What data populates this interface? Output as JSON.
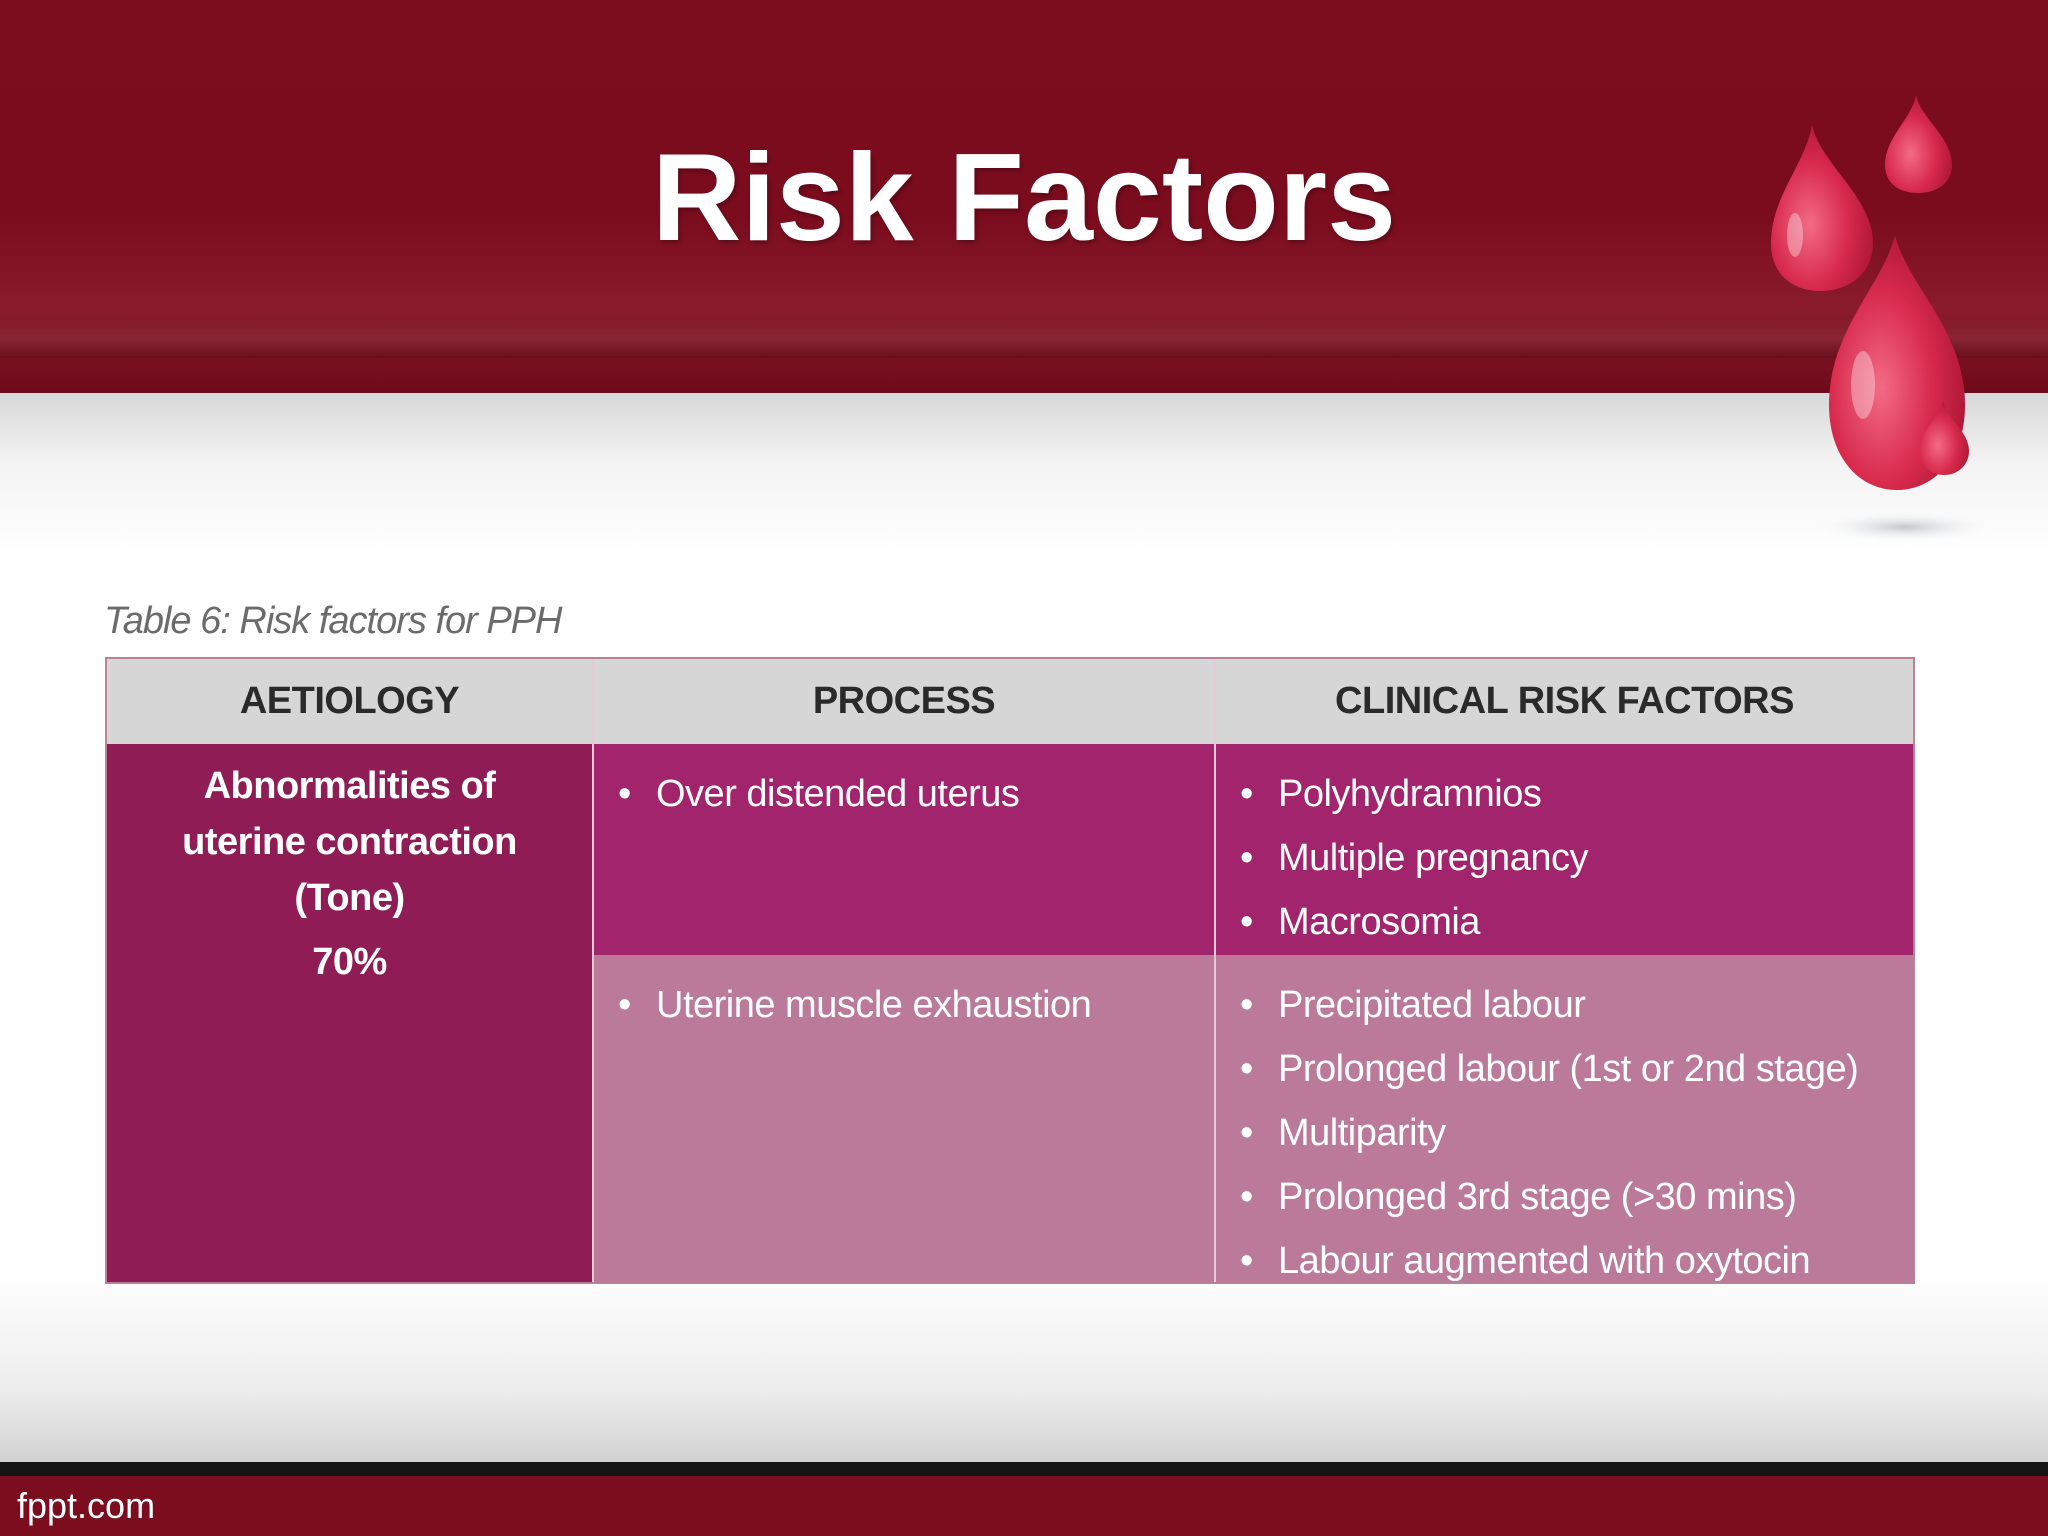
{
  "slide": {
    "title": "Risk Factors",
    "footer": "fppt.com",
    "colors": {
      "header": "#7c0d1f",
      "aetiology_cell": "#8f1c55",
      "process_top": "#a1246c",
      "process_bottom": "#bc7a9b",
      "table_header": "#d6d6d6"
    },
    "decoration": "blood-drops-icon"
  },
  "table": {
    "caption": "Table 6: Risk factors for PPH",
    "headers": [
      "AETIOLOGY",
      "PROCESS",
      "CLINICAL RISK FACTORS"
    ],
    "aetiology": {
      "lines": [
        "Abnormalities of",
        "uterine contraction",
        "(Tone)"
      ],
      "percent": "70%"
    },
    "rows": [
      {
        "process": "Over distended uterus",
        "factors": [
          "Polyhydramnios",
          "Multiple pregnancy",
          "Macrosomia"
        ]
      },
      {
        "process": "Uterine muscle exhaustion",
        "factors": [
          "Precipitated labour",
          "Prolonged labour (1st or 2nd stage)",
          "Multiparity",
          "Prolonged 3rd stage (>30 mins)",
          "Labour augmented with oxytocin"
        ]
      }
    ]
  }
}
